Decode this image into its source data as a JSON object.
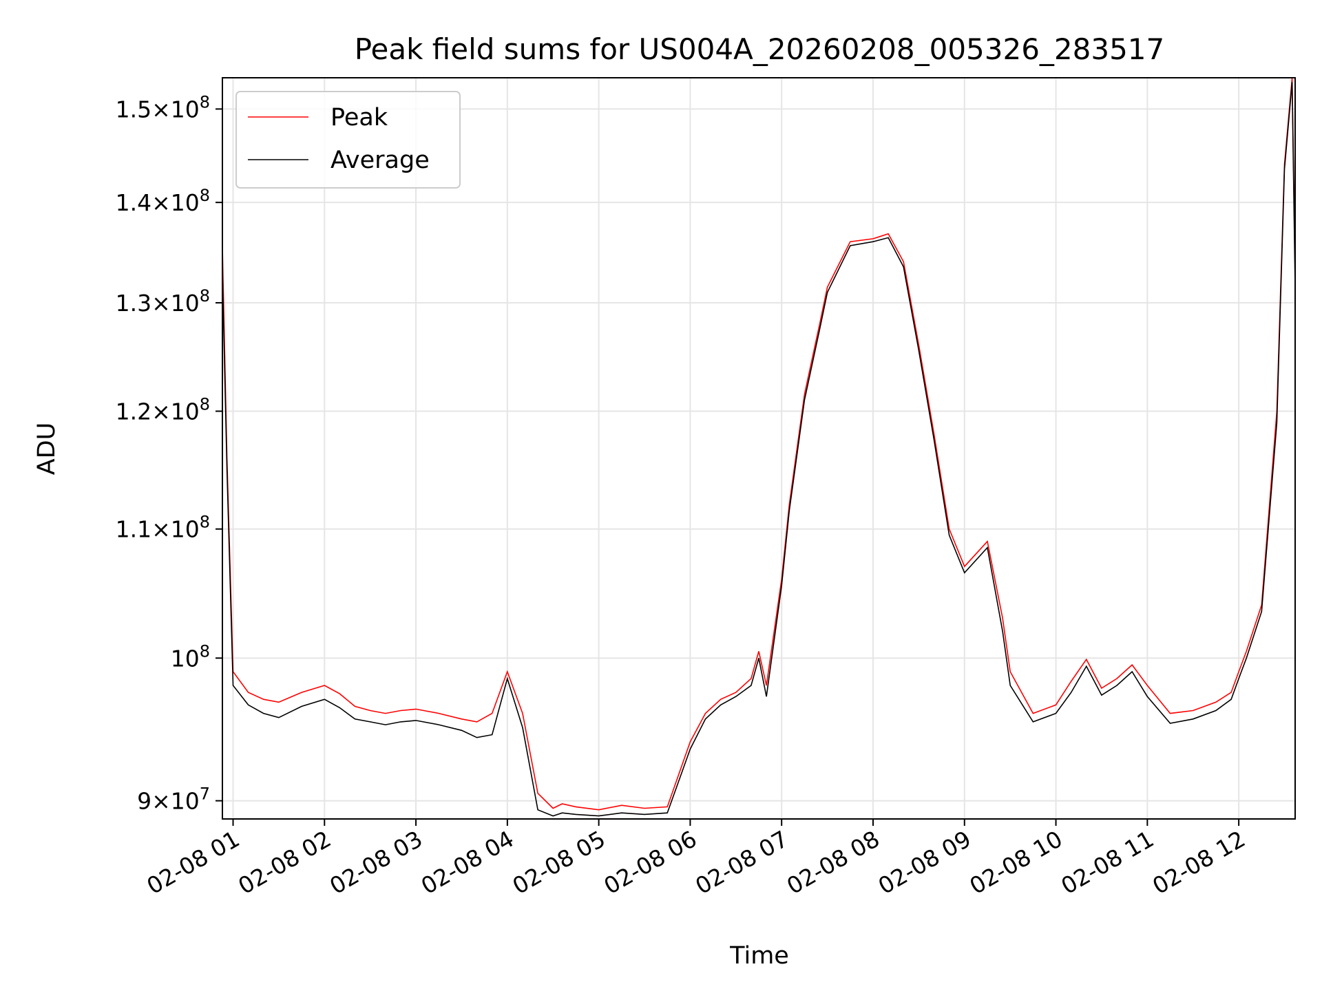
{
  "chart_data": {
    "type": "line",
    "title": "Peak field sums for US004A_20260208_005326_283517",
    "xlabel": "Time",
    "ylabel": "ADU",
    "yscale": "log",
    "grid": true,
    "legend_position": "upper-left",
    "x_tick_labels": [
      "02-08 01",
      "02-08 02",
      "02-08 03",
      "02-08 04",
      "02-08 05",
      "02-08 06",
      "02-08 07",
      "02-08 08",
      "02-08 09",
      "02-08 10",
      "02-08 11",
      "02-08 12"
    ],
    "y_ticks": [
      {
        "value": 90000000,
        "mantissa": "9",
        "exp": "7"
      },
      {
        "value": 100000000,
        "mantissa": "",
        "exp": "8"
      },
      {
        "value": 110000000,
        "mantissa": "1.1",
        "exp": "8"
      },
      {
        "value": 120000000,
        "mantissa": "1.2",
        "exp": "8"
      },
      {
        "value": 130000000,
        "mantissa": "1.3",
        "exp": "8"
      },
      {
        "value": 140000000,
        "mantissa": "1.4",
        "exp": "8"
      },
      {
        "value": 150000000,
        "mantissa": "1.5",
        "exp": "8"
      }
    ],
    "xlim": [
      "2026-02-08 00:53",
      "2026-02-08 12:37"
    ],
    "ylim": [
      88800000,
      153500000
    ],
    "series": [
      {
        "name": "Peak",
        "color": "#ff0000",
        "x": [
          "00:53",
          "00:56",
          "01:00",
          "01:10",
          "01:20",
          "01:30",
          "01:45",
          "02:00",
          "02:10",
          "02:20",
          "02:30",
          "02:40",
          "02:50",
          "03:00",
          "03:15",
          "03:30",
          "03:40",
          "03:50",
          "04:00",
          "04:10",
          "04:20",
          "04:30",
          "04:36",
          "04:45",
          "05:00",
          "05:15",
          "05:30",
          "05:45",
          "06:00",
          "06:10",
          "06:20",
          "06:30",
          "06:40",
          "06:45",
          "06:50",
          "07:00",
          "07:05",
          "07:15",
          "07:25",
          "07:30",
          "07:45",
          "08:00",
          "08:10",
          "08:20",
          "08:30",
          "08:40",
          "08:50",
          "09:00",
          "09:15",
          "09:25",
          "09:30",
          "09:45",
          "10:00",
          "10:10",
          "10:20",
          "10:30",
          "10:40",
          "10:50",
          "11:00",
          "11:15",
          "11:30",
          "11:45",
          "11:55",
          "12:00",
          "12:05",
          "12:15",
          "12:25",
          "12:30",
          "12:35",
          "12:37"
        ],
        "y": [
          135500000,
          116000000,
          99000000,
          97500000,
          97000000,
          96800000,
          97500000,
          98000000,
          97400000,
          96500000,
          96200000,
          96000000,
          96200000,
          96300000,
          96000000,
          95600000,
          95400000,
          96000000,
          99000000,
          96000000,
          90500000,
          89500000,
          89800000,
          89600000,
          89400000,
          89700000,
          89500000,
          89600000,
          94000000,
          96000000,
          97000000,
          97500000,
          98500000,
          100500000,
          98000000,
          106000000,
          112000000,
          121500000,
          128000000,
          131500000,
          136000000,
          136300000,
          136800000,
          134000000,
          126000000,
          118000000,
          110000000,
          107000000,
          109000000,
          103000000,
          99000000,
          96000000,
          96600000,
          98300000,
          99900000,
          97800000,
          98500000,
          99500000,
          98000000,
          96000000,
          96200000,
          96800000,
          97500000,
          99000000,
          100500000,
          104000000,
          120000000,
          144000000,
          153500000,
          133000000
        ]
      },
      {
        "name": "Average",
        "color": "#000000",
        "x": [
          "00:53",
          "00:56",
          "01:00",
          "01:10",
          "01:20",
          "01:30",
          "01:45",
          "02:00",
          "02:10",
          "02:20",
          "02:30",
          "02:40",
          "02:50",
          "03:00",
          "03:15",
          "03:30",
          "03:40",
          "03:50",
          "04:00",
          "04:10",
          "04:20",
          "04:30",
          "04:36",
          "04:45",
          "05:00",
          "05:15",
          "05:30",
          "05:45",
          "06:00",
          "06:10",
          "06:20",
          "06:30",
          "06:40",
          "06:45",
          "06:50",
          "07:00",
          "07:05",
          "07:15",
          "07:25",
          "07:30",
          "07:45",
          "08:00",
          "08:10",
          "08:20",
          "08:30",
          "08:40",
          "08:50",
          "09:00",
          "09:15",
          "09:25",
          "09:30",
          "09:45",
          "10:00",
          "10:10",
          "10:20",
          "10:30",
          "10:40",
          "10:50",
          "11:00",
          "11:15",
          "11:30",
          "11:45",
          "11:55",
          "12:00",
          "12:05",
          "12:15",
          "12:25",
          "12:30",
          "12:35",
          "12:37"
        ],
        "y": [
          133000000,
          115000000,
          98000000,
          96600000,
          96000000,
          95700000,
          96500000,
          97000000,
          96400000,
          95600000,
          95400000,
          95200000,
          95400000,
          95500000,
          95200000,
          94800000,
          94300000,
          94500000,
          98500000,
          95000000,
          89400000,
          89000000,
          89200000,
          89100000,
          89000000,
          89200000,
          89100000,
          89200000,
          93500000,
          95600000,
          96600000,
          97200000,
          98000000,
          100000000,
          97200000,
          105500000,
          111500000,
          121000000,
          127500000,
          131000000,
          135600000,
          136000000,
          136400000,
          133500000,
          125500000,
          117500000,
          109500000,
          106500000,
          108500000,
          102000000,
          98000000,
          95400000,
          96000000,
          97500000,
          99400000,
          97300000,
          98000000,
          99000000,
          97200000,
          95300000,
          95600000,
          96200000,
          97000000,
          98500000,
          100000000,
          103500000,
          119000000,
          143500000,
          153000000,
          131500000
        ]
      }
    ]
  }
}
